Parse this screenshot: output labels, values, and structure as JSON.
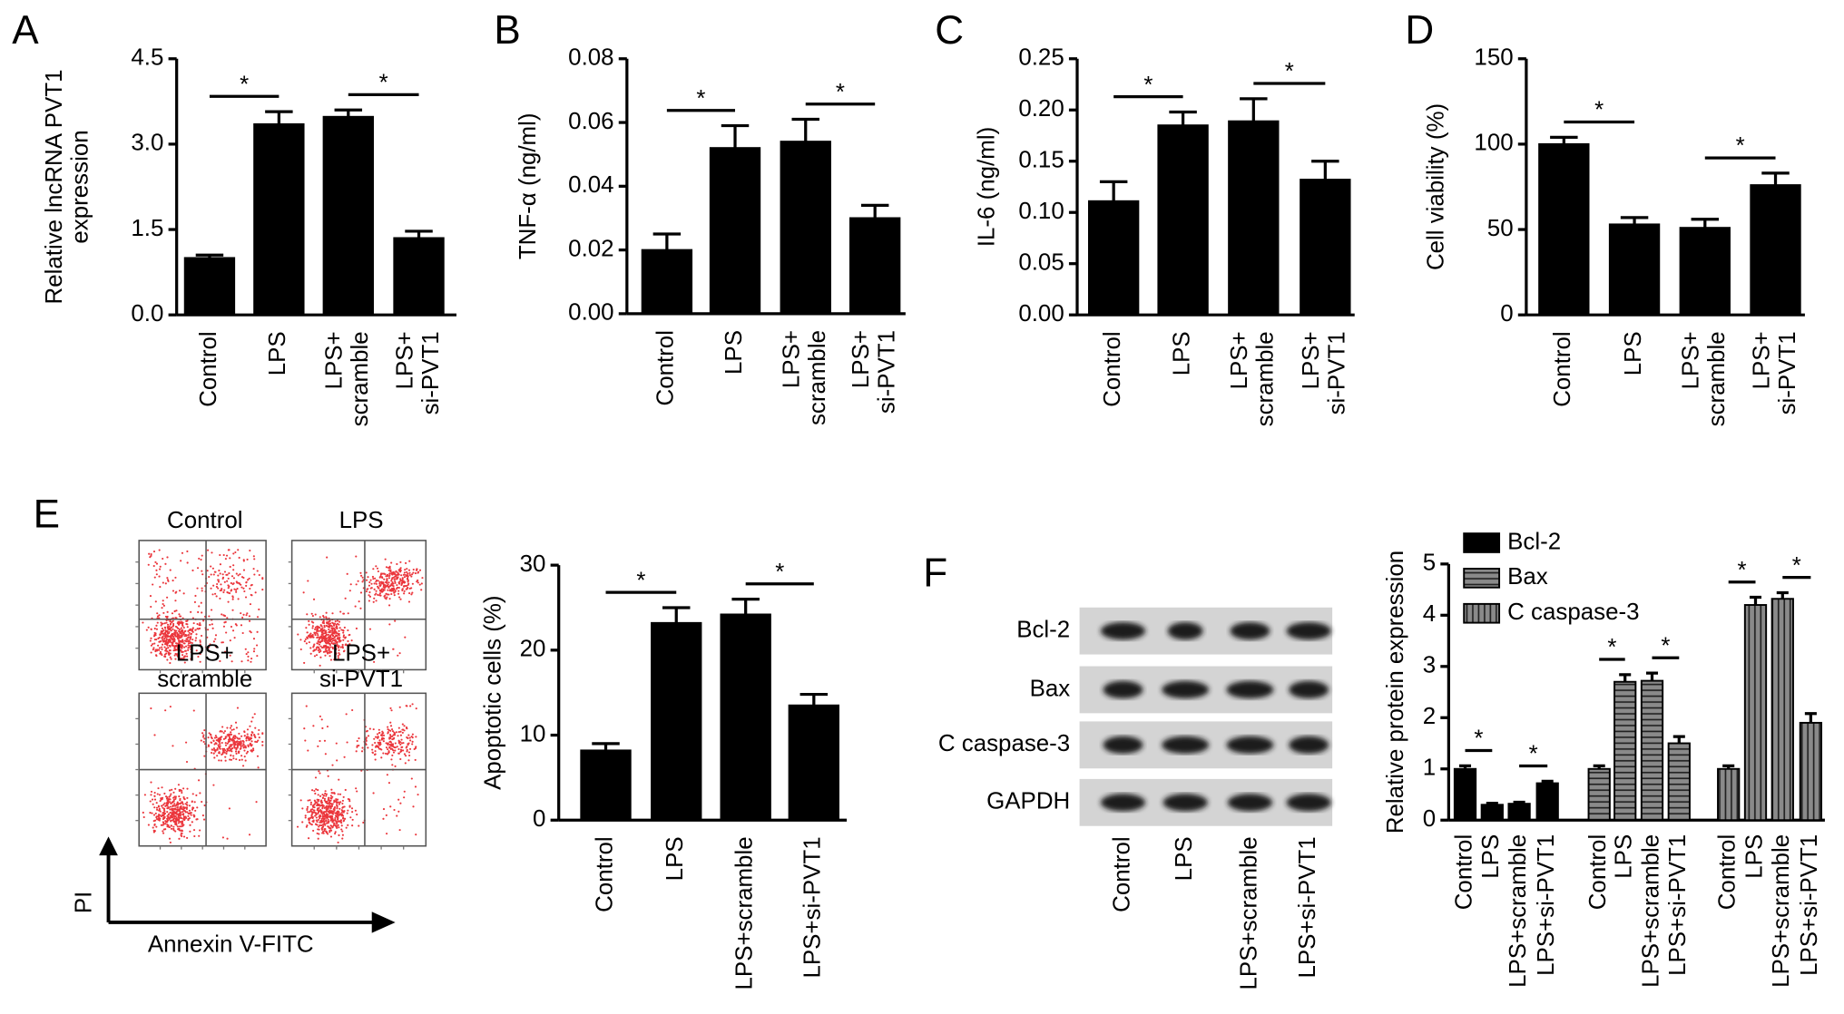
{
  "chart_data": [
    {
      "type": "bar",
      "panel": "A",
      "ylabel": "Relative lncRNA PVT1\nexpression",
      "categories": [
        "Control",
        "LPS",
        "LPS+\nscramble",
        "LPS+\nsi-PVT1"
      ],
      "values": [
        1.0,
        3.35,
        3.48,
        1.35
      ],
      "errors": [
        0.05,
        0.22,
        0.12,
        0.12
      ],
      "color": "#000000",
      "ylim": [
        0,
        4.5
      ],
      "yticks": [
        {
          "value": 0,
          "label": "0.0"
        },
        {
          "value": 1.5,
          "label": "1.5"
        },
        {
          "value": 3,
          "label": "3.0"
        },
        {
          "value": 4.5,
          "label": "4.5"
        }
      ],
      "significance": [
        {
          "label": "*",
          "between": [
            "Control",
            "LPS"
          ]
        },
        {
          "label": "*",
          "between": [
            "LPS+\nscramble",
            "LPS+\nsi-PVT1"
          ]
        }
      ]
    },
    {
      "type": "bar",
      "panel": "B",
      "ylabel": "TNF-α (ng/ml)",
      "categories": [
        "Control",
        "LPS",
        "LPS+\nscramble",
        "LPS+\nsi-PVT1"
      ],
      "values": [
        0.02,
        0.052,
        0.054,
        0.03
      ],
      "errors": [
        0.005,
        0.007,
        0.007,
        0.004
      ],
      "color": "#000000",
      "ylim": [
        0,
        0.08
      ],
      "yticks": [
        {
          "value": 0,
          "label": "0.00"
        },
        {
          "value": 0.02,
          "label": "0.02"
        },
        {
          "value": 0.04,
          "label": "0.04"
        },
        {
          "value": 0.06,
          "label": "0.06"
        },
        {
          "value": 0.08,
          "label": "0.08"
        }
      ],
      "significance": [
        {
          "label": "*",
          "between": [
            "Control",
            "LPS"
          ]
        },
        {
          "label": "*",
          "between": [
            "LPS+\nscramble",
            "LPS+\nsi-PVT1"
          ]
        }
      ]
    },
    {
      "type": "bar",
      "panel": "C",
      "ylabel": "IL-6 (ng/ml)",
      "categories": [
        "Control",
        "LPS",
        "LPS+\nscramble",
        "LPS+\nsi-PVT1"
      ],
      "values": [
        0.111,
        0.185,
        0.189,
        0.132
      ],
      "errors": [
        0.019,
        0.013,
        0.022,
        0.018
      ],
      "color": "#000000",
      "ylim": [
        0,
        0.25
      ],
      "yticks": [
        {
          "value": 0,
          "label": "0.00"
        },
        {
          "value": 0.05,
          "label": "0.05"
        },
        {
          "value": 0.1,
          "label": "0.10"
        },
        {
          "value": 0.15,
          "label": "0.15"
        },
        {
          "value": 0.2,
          "label": "0.20"
        },
        {
          "value": 0.25,
          "label": "0.25"
        }
      ],
      "significance": [
        {
          "label": "*",
          "between": [
            "Control",
            "LPS"
          ]
        },
        {
          "label": "*",
          "between": [
            "LPS+\nscramble",
            "LPS+\nsi-PVT1"
          ]
        }
      ]
    },
    {
      "type": "bar",
      "panel": "D",
      "ylabel": "Cell viability (%)",
      "categories": [
        "Control",
        "LPS",
        "LPS+\nscramble",
        "LPS+\nsi-PVT1"
      ],
      "values": [
        100,
        53,
        51,
        76
      ],
      "errors": [
        4,
        4,
        5,
        7
      ],
      "color": "#000000",
      "ylim": [
        0,
        150
      ],
      "yticks": [
        0,
        50,
        100,
        150
      ],
      "significance": [
        {
          "label": "*",
          "between": [
            "Control",
            "LPS"
          ]
        },
        {
          "label": "*",
          "between": [
            "LPS+\nscramble",
            "LPS+\nsi-PVT1"
          ]
        }
      ]
    },
    {
      "type": "bar",
      "ylabel": "Apoptotic cells (%)",
      "categories": [
        "Control",
        "LPS",
        "LPS+scramble",
        "LPS+si-PVT1"
      ],
      "values": [
        8.2,
        23.2,
        24.2,
        13.5
      ],
      "errors": [
        0.8,
        1.8,
        1.8,
        1.3
      ],
      "color": "#000000",
      "ylim": [
        0,
        30
      ],
      "yticks": [
        0,
        10,
        20,
        30
      ],
      "significance": [
        {
          "label": "*",
          "between": [
            "Control",
            "LPS"
          ]
        },
        {
          "label": "*",
          "between": [
            "LPS+scramble",
            "LPS+si-PVT1"
          ]
        }
      ]
    },
    {
      "type": "grouped_bar",
      "ylabel": "Relative protein expression",
      "categories": [
        "Control",
        "LPS",
        "LPS+scramble",
        "LPS+si-PVT1"
      ],
      "legend": "upper left",
      "ylim": [
        0,
        5
      ],
      "yticks": [
        0,
        1,
        2,
        3,
        4,
        5
      ],
      "series": [
        {
          "name": "Bcl-2",
          "color": "#000000",
          "pattern": "solid",
          "values": [
            1.0,
            0.3,
            0.32,
            0.72
          ],
          "errors": [
            0.06,
            0.03,
            0.03,
            0.04
          ],
          "significance": [
            {
              "label": "*",
              "between": [
                "Control",
                "LPS"
              ]
            },
            {
              "label": "*",
              "between": [
                "LPS+scramble",
                "LPS+si-PVT1"
              ]
            }
          ]
        },
        {
          "name": "Bax",
          "color": "#8a8a8a",
          "pattern": "horizontal",
          "values": [
            1.0,
            2.7,
            2.72,
            1.5
          ],
          "errors": [
            0.06,
            0.14,
            0.15,
            0.13
          ],
          "significance": [
            {
              "label": "*",
              "between": [
                "Control",
                "LPS"
              ]
            },
            {
              "label": "*",
              "between": [
                "LPS+scramble",
                "LPS+si-PVT1"
              ]
            }
          ]
        },
        {
          "name": "C caspase-3",
          "color": "#8a8a8a",
          "pattern": "vertical",
          "values": [
            1.0,
            4.2,
            4.32,
            1.9
          ],
          "errors": [
            0.06,
            0.15,
            0.12,
            0.18
          ],
          "significance": [
            {
              "label": "*",
              "between": [
                "Control",
                "LPS"
              ]
            },
            {
              "label": "*",
              "between": [
                "LPS+scramble",
                "LPS+si-PVT1"
              ]
            }
          ]
        }
      ]
    }
  ],
  "flow_cytometry": {
    "panel": "E",
    "plots": [
      "Control",
      "LPS",
      "LPS+\nscramble",
      "LPS+\nsi-PVT1"
    ],
    "y_axis": "PI",
    "x_axis": "Annexin V-FITC"
  },
  "western_blot": {
    "panel": "F",
    "proteins": [
      "Bcl-2",
      "Bax",
      "C caspase-3",
      "GAPDH"
    ],
    "lanes": [
      "Control",
      "LPS",
      "LPS+scramble",
      "LPS+si-PVT1"
    ]
  }
}
